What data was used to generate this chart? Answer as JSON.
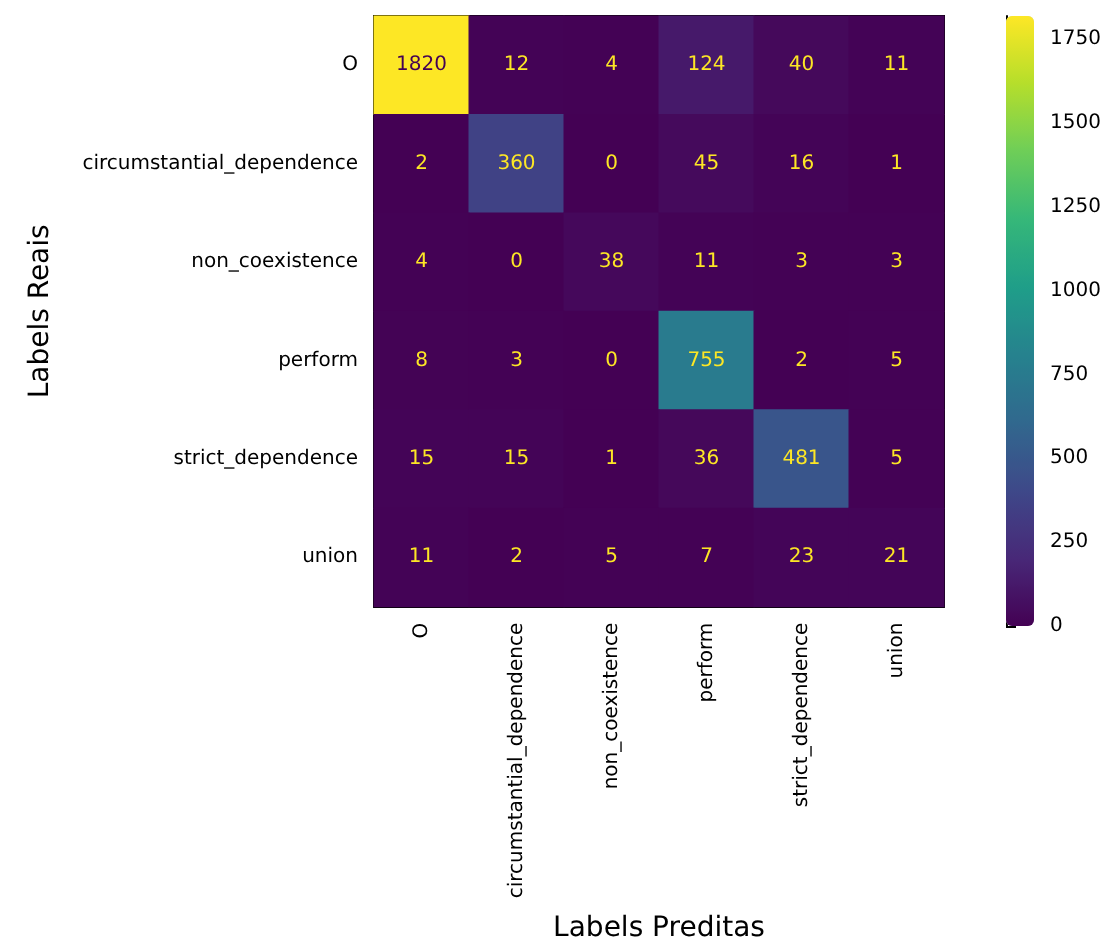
{
  "chart_data": {
    "type": "heatmap",
    "xlabel": "Labels Preditas",
    "ylabel": "Labels Reais",
    "categories": [
      "O",
      "circumstantial_dependence",
      "non_coexistence",
      "perform",
      "strict_dependence",
      "union"
    ],
    "y_categories": [
      "O",
      "circumstantial_dependence",
      "non_coexistence",
      "perform",
      "strict_dependence",
      "union"
    ],
    "cells": [
      [
        1820,
        12,
        4,
        124,
        40,
        11
      ],
      [
        2,
        360,
        0,
        45,
        16,
        1
      ],
      [
        4,
        0,
        38,
        11,
        3,
        3
      ],
      [
        8,
        3,
        0,
        755,
        2,
        5
      ],
      [
        15,
        15,
        1,
        36,
        481,
        5
      ],
      [
        11,
        2,
        5,
        7,
        23,
        21
      ]
    ],
    "clim": [
      0,
      1820
    ],
    "cticks": [
      0,
      250,
      500,
      750,
      1000,
      1250,
      1500,
      1750
    ],
    "data_labels": true
  }
}
